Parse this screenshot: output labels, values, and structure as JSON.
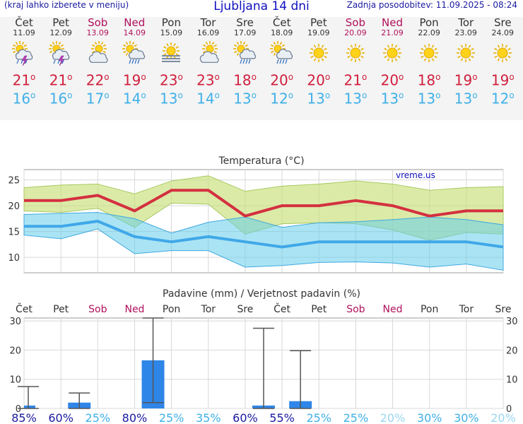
{
  "header": {
    "left_note": "(kraj lahko izberete v meniju)",
    "title": "Ljubljana 14 dni",
    "updated": "Zadnja posodobitev: 11.09.2025 - 08:24"
  },
  "degree": "o",
  "days": [
    {
      "name": "Čet",
      "date": "11.09",
      "weekend": false,
      "icon": "thunderstorm-icon",
      "tmax": "21",
      "tmin": "16"
    },
    {
      "name": "Pet",
      "date": "12.09",
      "weekend": false,
      "icon": "thunderstorm-icon",
      "tmax": "21",
      "tmin": "16"
    },
    {
      "name": "Sob",
      "date": "13.09",
      "weekend": true,
      "icon": "partly-cloudy-icon",
      "tmax": "22",
      "tmin": "17"
    },
    {
      "name": "Ned",
      "date": "14.09",
      "weekend": true,
      "icon": "sun-rain-icon",
      "tmax": "19",
      "tmin": "14"
    },
    {
      "name": "Pon",
      "date": "15.09",
      "weekend": false,
      "icon": "sun-fog-icon",
      "tmax": "23",
      "tmin": "13"
    },
    {
      "name": "Tor",
      "date": "16.09",
      "weekend": false,
      "icon": "partly-cloudy-icon",
      "tmax": "23",
      "tmin": "14"
    },
    {
      "name": "Sre",
      "date": "17.09",
      "weekend": false,
      "icon": "sun-rain-icon",
      "tmax": "18",
      "tmin": "13"
    },
    {
      "name": "Čet",
      "date": "18.09",
      "weekend": false,
      "icon": "sun-rain-icon",
      "tmax": "20",
      "tmin": "12"
    },
    {
      "name": "Pet",
      "date": "19.09",
      "weekend": false,
      "icon": "sun-icon",
      "tmax": "20",
      "tmin": "13"
    },
    {
      "name": "Sob",
      "date": "20.09",
      "weekend": true,
      "icon": "sun-icon",
      "tmax": "21",
      "tmin": "13"
    },
    {
      "name": "Ned",
      "date": "21.09",
      "weekend": true,
      "icon": "sun-icon",
      "tmax": "20",
      "tmin": "13"
    },
    {
      "name": "Pon",
      "date": "22.09",
      "weekend": false,
      "icon": "sun-icon",
      "tmax": "18",
      "tmin": "13"
    },
    {
      "name": "Tor",
      "date": "23.09",
      "weekend": false,
      "icon": "sun-icon",
      "tmax": "19",
      "tmin": "13"
    },
    {
      "name": "Sre",
      "date": "24.09",
      "weekend": false,
      "icon": "sun-icon",
      "tmax": "19",
      "tmin": "12"
    }
  ],
  "chart_data": [
    {
      "type": "line",
      "title": "Temperatura (°C)",
      "watermark": "vreme.us",
      "x": [
        "11.09",
        "12.09",
        "13.09",
        "14.09",
        "15.09",
        "16.09",
        "17.09",
        "18.09",
        "19.09",
        "20.09",
        "21.09",
        "22.09",
        "23.09",
        "24.09"
      ],
      "ylim": [
        7,
        27
      ],
      "yticks": [
        "10",
        "15",
        "20",
        "25"
      ],
      "series": [
        {
          "values": [
            21,
            21,
            22,
            19,
            23,
            23,
            18,
            20,
            20,
            21,
            20,
            18,
            19,
            19
          ],
          "color": "#d43040"
        },
        {
          "values": [
            16,
            16,
            17,
            14,
            13,
            14,
            13,
            12,
            13,
            13,
            13,
            13,
            13,
            12
          ],
          "color": "#40a8e8"
        }
      ],
      "max_band_upper": [
        23.5,
        24,
        24.2,
        22.3,
        24.8,
        25.8,
        22.8,
        23.8,
        24.2,
        24.8,
        24.2,
        23,
        23.5,
        23.7
      ],
      "max_band_lower": [
        19,
        18.7,
        19.5,
        15.8,
        20.5,
        20.3,
        14.5,
        16.5,
        16.7,
        16.5,
        15.3,
        13.3,
        14.8,
        14.5
      ],
      "min_band_upper": [
        18.3,
        18.5,
        18.7,
        17.5,
        14.7,
        16.8,
        17.8,
        15.8,
        16.7,
        16.9,
        17.3,
        17.8,
        17.3,
        16.3
      ],
      "min_band_lower": [
        14.3,
        13.6,
        15.5,
        10.7,
        11.3,
        11.3,
        8.1,
        8.4,
        9,
        9.1,
        8.9,
        8.1,
        8.7,
        7.5
      ]
    },
    {
      "type": "bar",
      "title": "Padavine (mm) / Verjetnost padavin (%)",
      "categories": [
        "Čet",
        "Pet",
        "Sob",
        "Ned",
        "Pon",
        "Tor",
        "Sre",
        "Čet",
        "Pet",
        "Sob",
        "Ned",
        "Pon",
        "Tor",
        "Sre"
      ],
      "weekend": [
        false,
        false,
        true,
        true,
        false,
        false,
        false,
        false,
        false,
        true,
        true,
        false,
        false,
        false
      ],
      "values": [
        1,
        2,
        0,
        16.5,
        0,
        0,
        1,
        2.5,
        0,
        0,
        0,
        0,
        0,
        0
      ],
      "error_high": [
        7.5,
        5.3,
        0,
        31,
        0,
        0,
        27.5,
        19.8,
        0,
        0,
        0,
        0,
        0,
        0
      ],
      "error_low": [
        0,
        0,
        0,
        2,
        0,
        0,
        0,
        0,
        0,
        0,
        0,
        0,
        0,
        0
      ],
      "ylim": [
        0,
        31
      ],
      "yticks": [
        "0",
        "10",
        "20",
        "30"
      ],
      "probability": [
        "85%",
        "60%",
        "25%",
        "80%",
        "25%",
        "35%",
        "60%",
        "55%",
        "25%",
        "25%",
        "20%",
        "30%",
        "30%",
        "20%"
      ],
      "probability_colors": [
        "#1a1aa0",
        "#1a1aa0",
        "#40b0e8",
        "#1a1aa0",
        "#40b0e8",
        "#40b0e8",
        "#1a1aa0",
        "#1a1aa0",
        "#40b0e8",
        "#40b0e8",
        "#9ad6f0",
        "#40b0e8",
        "#40b0e8",
        "#9ad6f0"
      ]
    }
  ]
}
